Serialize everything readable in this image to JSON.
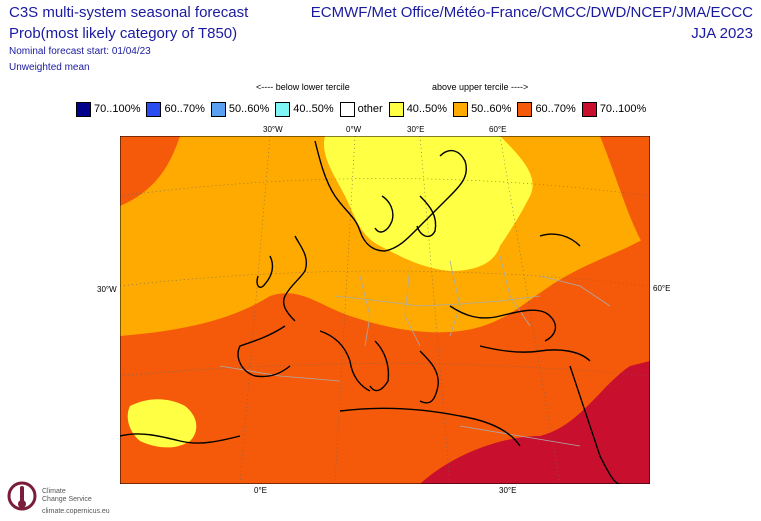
{
  "header": {
    "left_line1": "C3S multi-system seasonal forecast",
    "left_line2": "Prob(most likely category of T850)",
    "left_line3": "Nominal forecast start: 01/04/23",
    "left_line4": "Unweighted mean",
    "right_line1": "ECMWF/Met Office/Météo-France/CMCC/DWD/NCEP/JMA/ECCC",
    "right_line2": "JJA 2023"
  },
  "tercile_labels": {
    "below": "<---- below lower tercile",
    "above": "above upper tercile ---->"
  },
  "legend": [
    {
      "label": "70..100%",
      "color": "#00008b"
    },
    {
      "label": "60..70%",
      "color": "#2a4cf0"
    },
    {
      "label": "50..60%",
      "color": "#5aa0f0"
    },
    {
      "label": "40..50%",
      "color": "#7ff5f5"
    },
    {
      "label": "other",
      "color": "#ffffff"
    },
    {
      "label": "40..50%",
      "color": "#ffff44"
    },
    {
      "label": "50..60%",
      "color": "#ffaa00"
    },
    {
      "label": "60..70%",
      "color": "#f55a0a"
    },
    {
      "label": "70..100%",
      "color": "#c8102e"
    }
  ],
  "axis_ticks": {
    "top": [
      "30°W",
      "0°W",
      "30°E",
      "60°E"
    ],
    "left": "30°W",
    "right": "60°E",
    "bottom": [
      "0°E",
      "30°E"
    ]
  },
  "colors": {
    "above_40_50": "#ffff44",
    "above_50_60": "#ffaa00",
    "above_60_70": "#f55a0a",
    "above_70_100": "#c8102e",
    "coastline": "#000000",
    "borders": "#aaaaaa"
  },
  "footer": {
    "brand_line1": "Climate",
    "brand_line2": "Change Service",
    "url": "climate.copernicus.eu"
  }
}
